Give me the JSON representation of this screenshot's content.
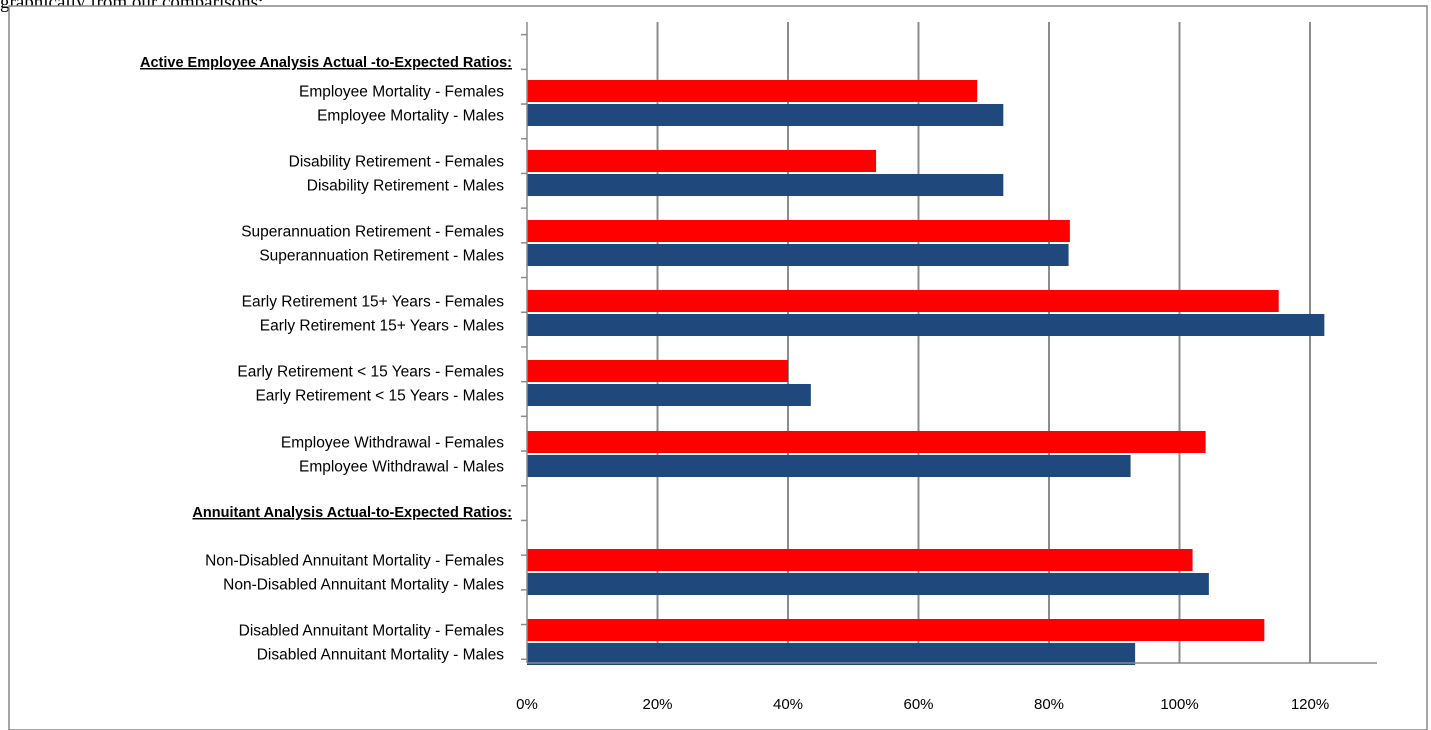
{
  "top_text": "graphically from our comparisons:",
  "chart_data": {
    "type": "bar",
    "orientation": "horizontal",
    "title": "",
    "xlabel": "",
    "ylabel": "",
    "xlim": [
      0,
      1.3
    ],
    "x_ticks": [
      0,
      0.2,
      0.4,
      0.6,
      0.8,
      1.0,
      1.2
    ],
    "x_tick_labels": [
      "0%",
      "20%",
      "40%",
      "60%",
      "80%",
      "100%",
      "120%"
    ],
    "grid": "vertical",
    "legend": "none",
    "colors": {
      "females": "#ff0000",
      "males": "#1f497d"
    },
    "rows": [
      {
        "label": "Active Employee Analysis Actual -to-Expected Ratios:",
        "heading": true
      },
      {
        "label": "Employee Mortality  - Females",
        "value": 0.69,
        "series": "females"
      },
      {
        "label": "Employee Mortality  - Males",
        "value": 0.73,
        "series": "males"
      },
      {
        "label": "Disability Retirement  - Females",
        "value": 0.535,
        "series": "females"
      },
      {
        "label": "Disability Retirement  - Males",
        "value": 0.73,
        "series": "males"
      },
      {
        "label": "Superannuation Retirement  - Females",
        "value": 0.832,
        "series": "females"
      },
      {
        "label": "Superannuation Retirement  - Males",
        "value": 0.83,
        "series": "males"
      },
      {
        "label": "Early Retirement  15+ Years  - Females",
        "value": 1.152,
        "series": "females"
      },
      {
        "label": "Early Retirement 15+ Years  - Males",
        "value": 1.222,
        "series": "males"
      },
      {
        "label": "Early Retirement < 15 Years  - Females",
        "value": 0.4,
        "series": "females"
      },
      {
        "label": "Early Retirement < 15 Years  - Males",
        "value": 0.435,
        "series": "males"
      },
      {
        "label": "Employee Withdrawal  - Females",
        "value": 1.04,
        "series": "females"
      },
      {
        "label": "Employee Withdrawal  - Males",
        "value": 0.925,
        "series": "males"
      },
      {
        "label": "Annuitant Analysis Actual-to-Expected  Ratios:",
        "heading": true
      },
      {
        "label": "Non-Disabled Annuitant Mortality  - Females",
        "value": 1.02,
        "series": "females"
      },
      {
        "label": "Non-Disabled Annuitant Mortality  - Males",
        "value": 1.045,
        "series": "males"
      },
      {
        "label": "Disabled Annuitant Mortality  - Females",
        "value": 1.13,
        "series": "females"
      },
      {
        "label": "Disabled Annuitant Mortality  - Males",
        "value": 0.932,
        "series": "males"
      }
    ]
  }
}
